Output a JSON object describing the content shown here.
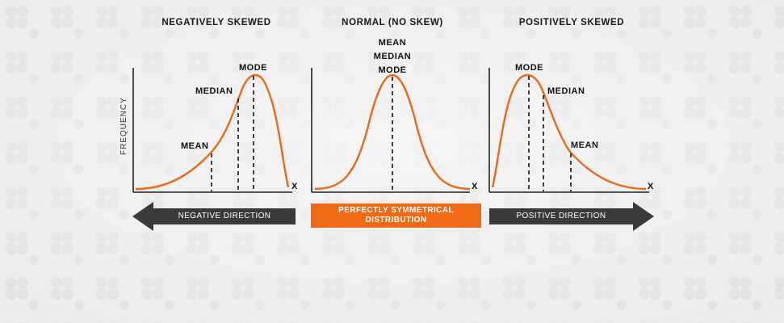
{
  "panels": {
    "negative": {
      "title": "NEGATIVELY SKEWED",
      "mode": "MODE",
      "median": "MEDIAN",
      "mean": "MEAN",
      "x_axis": "X",
      "y_axis": "FREQUENCY"
    },
    "normal": {
      "title": "NORMAL (NO SKEW)",
      "mean": "MEAN",
      "median": "MEDIAN",
      "mode": "MODE",
      "x_axis": "X"
    },
    "positive": {
      "title": "POSITIVELY SKEWED",
      "mode": "MODE",
      "median": "MEDIAN",
      "mean": "MEAN",
      "x_axis": "X"
    }
  },
  "directions": {
    "negative": "NEGATIVE DIRECTION",
    "symmetric_line1": "PERFECTLY SYMMETRICAL",
    "symmetric_line2": "DISTRIBUTION",
    "positive": "POSITIVE DIRECTION"
  },
  "colors": {
    "curve": "#e86a1c",
    "banner": "#f06a14",
    "arrow": "#3a3a3a"
  }
}
